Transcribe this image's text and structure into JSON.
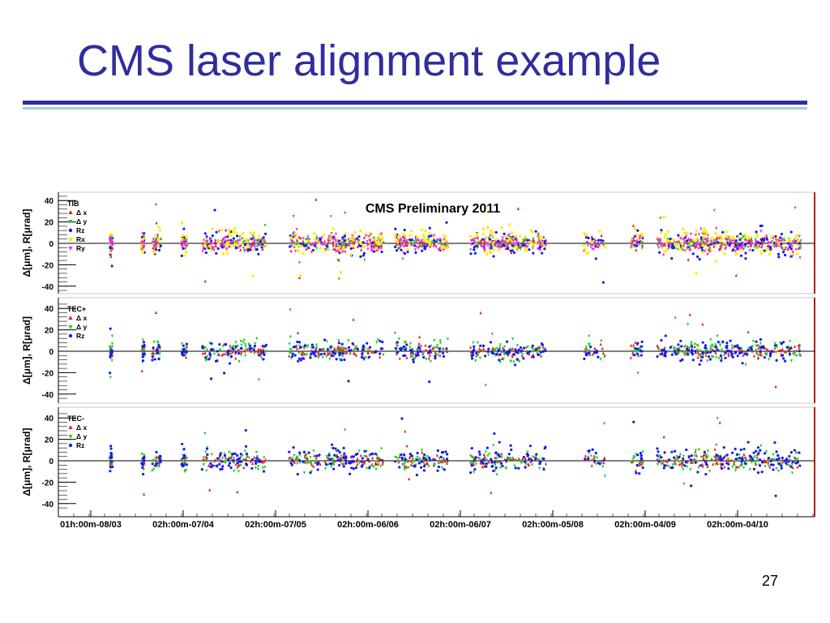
{
  "slide": {
    "title": "CMS laser alignment example",
    "page_number": "27",
    "title_color": "#2e2e9e",
    "rule_color": "#2e2e9e",
    "rule_accent_color": "#9fd3cc"
  },
  "chart_data": [
    {
      "type": "scatter",
      "title": "CMS Preliminary 2011",
      "panel_label": "TIB",
      "ylabel": "Δ[μm], R[μrad]",
      "ylim": [
        -45,
        45
      ],
      "yticks": [
        40,
        20,
        0,
        -20,
        -40
      ],
      "grid": false,
      "legend_position": "top-left",
      "legend": [
        "Δ x",
        "Δ y",
        "Rz",
        "Rx",
        "Ry"
      ],
      "series": [
        {
          "name": "Δ x",
          "color": "#dd2222",
          "marker": "triangle-up",
          "y_mean": 0,
          "y_spread": 3
        },
        {
          "name": "Δ y",
          "color": "#22cc22",
          "marker": "triangle-down",
          "y_mean": 0,
          "y_spread": 3
        },
        {
          "name": "Rz",
          "color": "#1a1aee",
          "marker": "circle",
          "y_mean": 0,
          "y_spread": 6
        },
        {
          "name": "Rx",
          "color": "#ffee00",
          "marker": "square",
          "y_mean": 2,
          "y_spread": 6
        },
        {
          "name": "Ry",
          "color": "#ff22ee",
          "marker": "triangle-down",
          "y_mean": 0,
          "y_spread": 4
        }
      ]
    },
    {
      "type": "scatter",
      "panel_label": "TEC+",
      "ylabel": "Δ[μm], R[μrad]",
      "ylim": [
        -45,
        45
      ],
      "yticks": [
        40,
        20,
        0,
        -20,
        -40
      ],
      "grid": false,
      "legend_position": "top-left",
      "legend": [
        "Δ x",
        "Δ y",
        "Rz"
      ],
      "series": [
        {
          "name": "Δ x",
          "color": "#dd2222",
          "marker": "triangle-up",
          "y_mean": 0,
          "y_spread": 3
        },
        {
          "name": "Δ y",
          "color": "#22cc22",
          "marker": "triangle-down",
          "y_mean": 1,
          "y_spread": 5
        },
        {
          "name": "Rz",
          "color": "#1a1aee",
          "marker": "circle",
          "y_mean": 0,
          "y_spread": 5
        }
      ]
    },
    {
      "type": "scatter",
      "panel_label": "TEC-",
      "ylabel": "Δ[μm], R[μrad]",
      "ylim": [
        -45,
        45
      ],
      "yticks": [
        40,
        20,
        0,
        -20,
        -40
      ],
      "grid": false,
      "legend_position": "top-left",
      "legend": [
        "Δ x",
        "Δ y",
        "Rz"
      ],
      "series": [
        {
          "name": "Δ x",
          "color": "#dd2222",
          "marker": "triangle-up",
          "y_mean": 0,
          "y_spread": 3
        },
        {
          "name": "Δ y",
          "color": "#22cc22",
          "marker": "triangle-down",
          "y_mean": 0,
          "y_spread": 5
        },
        {
          "name": "Rz",
          "color": "#1a1aee",
          "marker": "circle",
          "y_mean": 1,
          "y_spread": 6
        }
      ]
    }
  ],
  "x_axis": {
    "tick_labels": [
      "01h:00m-08/03",
      "02h:00m-07/04",
      "02h:00m-07/05",
      "02h:00m-06/06",
      "02h:00m-06/07",
      "02h:00m-05/08",
      "02h:00m-04/09",
      "02h:00m-04/10"
    ]
  }
}
